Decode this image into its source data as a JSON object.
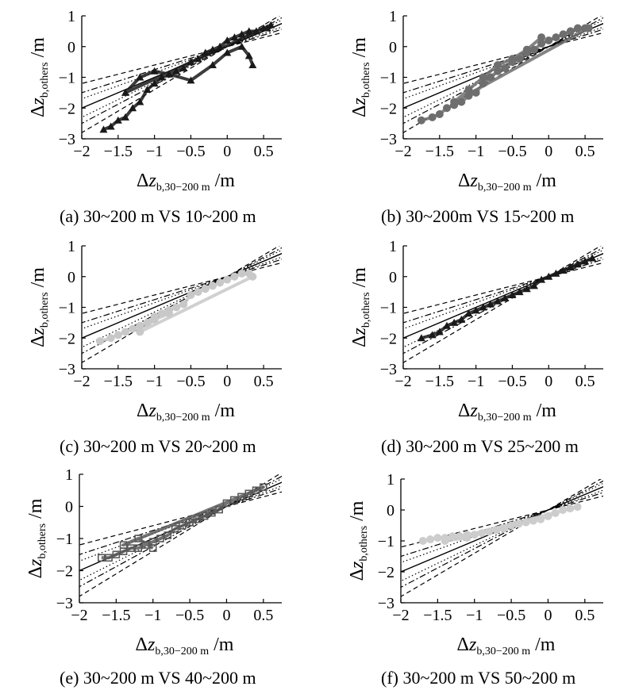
{
  "chart_data": [
    {
      "type": "scatter",
      "caption": "(a) 30~200 m VS 10~200 m",
      "xlabel": "Δz_b,30−200 m /m",
      "ylabel": "Δz_b,others /m",
      "xlim": [
        -2.0,
        0.75
      ],
      "ylim": [
        -3,
        1
      ],
      "xticks": [
        "−2",
        "−1.5",
        "−1",
        "−0.5",
        "0",
        "0.5"
      ],
      "yticks": [
        "1",
        "0",
        "−1",
        "−2",
        "−3"
      ],
      "marker": "triangle",
      "marker_color": "#1a1a1a",
      "guide_lines": {
        "center_slope": 1.0,
        "dotted_slopes": [
          0.85,
          1.15
        ],
        "dashdot_slopes": [
          0.75,
          1.25
        ],
        "dashed_slopes": [
          0.6,
          1.4
        ],
        "pivot": [
          0,
          0
        ]
      },
      "series": [
        {
          "x": [
            -1.7,
            -1.6,
            -1.5,
            -1.4,
            -1.3,
            -1.2,
            -1.1,
            -1.0,
            -0.9,
            -0.8,
            -0.7,
            -0.6,
            -0.5,
            -0.4,
            -0.3,
            -0.2,
            -0.1,
            0.0,
            0.1,
            0.2,
            0.3,
            0.4,
            0.5,
            0.55,
            0.6,
            -1.4,
            -1.2,
            -1.0,
            -0.8,
            -0.5,
            -0.2,
            0.0,
            0.2,
            0.3,
            0.35
          ],
          "y": [
            -2.7,
            -2.6,
            -2.4,
            -2.3,
            -2.0,
            -1.8,
            -1.4,
            -1.2,
            -1.0,
            -0.9,
            -0.8,
            -0.7,
            -0.5,
            -0.4,
            -0.2,
            -0.1,
            0.0,
            0.2,
            0.3,
            0.4,
            0.5,
            0.5,
            0.6,
            0.6,
            0.7,
            -1.5,
            -1.0,
            -0.8,
            -0.9,
            -1.1,
            -0.6,
            -0.2,
            0.0,
            -0.3,
            -0.6
          ]
        }
      ]
    },
    {
      "type": "scatter",
      "caption": "(b) 30~200m VS 15~200 m",
      "xlabel": "Δz_b,30−200 m /m",
      "ylabel": "Δz_b,others /m",
      "xlim": [
        -2.0,
        0.75
      ],
      "ylim": [
        -3,
        1
      ],
      "xticks": [
        "−2",
        "−1.5",
        "−1",
        "−0.5",
        "0",
        "0.5"
      ],
      "yticks": [
        "1",
        "0",
        "−1",
        "−2",
        "−3"
      ],
      "marker": "circle",
      "marker_color": "#6e6e6e",
      "guide_lines": {
        "center_slope": 1.0,
        "dotted_slopes": [
          0.85,
          1.15
        ],
        "dashdot_slopes": [
          0.75,
          1.25
        ],
        "dashed_slopes": [
          0.6,
          1.4
        ],
        "pivot": [
          0,
          0
        ]
      },
      "series": [
        {
          "x": [
            -1.75,
            -1.6,
            -1.5,
            -1.4,
            -1.3,
            -1.2,
            -1.1,
            -1.0,
            -0.9,
            -0.8,
            -0.7,
            -0.6,
            -0.5,
            -0.4,
            -0.3,
            -0.2,
            -0.1,
            0.0,
            0.1,
            0.2,
            0.3,
            0.4,
            0.5,
            0.55,
            -1.3,
            -1.1,
            -0.9,
            -0.7,
            -0.5,
            -0.3,
            -0.1
          ],
          "y": [
            -2.4,
            -2.3,
            -2.2,
            -2.0,
            -1.9,
            -1.8,
            -1.6,
            -1.5,
            -1.2,
            -1.0,
            -0.8,
            -0.7,
            -0.5,
            -0.4,
            -0.2,
            -0.1,
            0.1,
            0.2,
            0.3,
            0.4,
            0.5,
            0.6,
            0.6,
            0.6,
            -1.8,
            -1.4,
            -1.0,
            -0.6,
            -0.4,
            -0.1,
            0.3
          ]
        }
      ]
    },
    {
      "type": "scatter",
      "caption": "(c) 30~200 m VS 20~200 m",
      "xlabel": "Δz_b,30−200 m /m",
      "ylabel": "Δz_b,others /m",
      "xlim": [
        -2.0,
        0.75
      ],
      "ylim": [
        -3,
        1
      ],
      "xticks": [
        "−2",
        "−1.5",
        "−1",
        "−0.5",
        "0",
        "0.5"
      ],
      "yticks": [
        "1",
        "0",
        "−1",
        "−2",
        "−3"
      ],
      "marker": "circle",
      "marker_color": "#c8c8c8",
      "guide_lines": {
        "center_slope": 1.0,
        "dotted_slopes": [
          0.85,
          1.15
        ],
        "dashdot_slopes": [
          0.75,
          1.25
        ],
        "dashed_slopes": [
          0.6,
          1.4
        ],
        "pivot": [
          0,
          0
        ]
      },
      "series": [
        {
          "x": [
            -1.75,
            -1.6,
            -1.5,
            -1.4,
            -1.3,
            -1.2,
            -1.1,
            -1.0,
            -0.9,
            -0.8,
            -0.7,
            -0.6,
            -0.5,
            -0.4,
            -0.3,
            -0.2,
            -0.1,
            0.0,
            0.1,
            0.2,
            0.3,
            0.35,
            -1.2,
            -1.0,
            -0.8
          ],
          "y": [
            -2.1,
            -2.0,
            -1.9,
            -1.8,
            -1.7,
            -1.6,
            -1.5,
            -1.3,
            -1.2,
            -1.1,
            -1.0,
            -0.9,
            -0.6,
            -0.5,
            -0.4,
            -0.3,
            -0.2,
            -0.1,
            0.0,
            0.1,
            0.1,
            0.0,
            -1.8,
            -1.4,
            -1.2
          ]
        }
      ]
    },
    {
      "type": "scatter",
      "caption": "(d) 30~200 m VS 25~200 m",
      "xlabel": "Δz_b,30−200 m /m",
      "ylabel": "Δz_b,others /m",
      "xlim": [
        -2.0,
        0.75
      ],
      "ylim": [
        -3,
        1
      ],
      "xticks": [
        "−2",
        "−1.5",
        "−1",
        "−0.5",
        "0",
        "0.5"
      ],
      "yticks": [
        "1",
        "0",
        "−1",
        "−2",
        "−3"
      ],
      "marker": "triangle",
      "marker_color": "#1a1a1a",
      "guide_lines": {
        "center_slope": 1.0,
        "dotted_slopes": [
          0.85,
          1.15
        ],
        "dashdot_slopes": [
          0.75,
          1.25
        ],
        "dashed_slopes": [
          0.6,
          1.4
        ],
        "pivot": [
          0,
          0
        ]
      },
      "series": [
        {
          "x": [
            -1.75,
            -1.6,
            -1.5,
            -1.4,
            -1.3,
            -1.2,
            -1.1,
            -1.0,
            -0.9,
            -0.8,
            -0.7,
            -0.6,
            -0.5,
            -0.4,
            -0.3,
            -0.2,
            -0.1,
            0.0,
            0.1,
            0.2,
            0.3,
            0.4,
            0.5,
            0.6
          ],
          "y": [
            -2.0,
            -1.9,
            -1.8,
            -1.6,
            -1.5,
            -1.4,
            -1.2,
            -1.1,
            -1.0,
            -0.9,
            -0.8,
            -0.7,
            -0.6,
            -0.5,
            -0.4,
            -0.3,
            -0.1,
            0.0,
            0.1,
            0.2,
            0.3,
            0.4,
            0.5,
            0.6
          ]
        }
      ]
    },
    {
      "type": "scatter",
      "caption": "(e) 30~200 m VS 40~200 m",
      "xlabel": "Δz_b,30−200 m /m",
      "ylabel": "Δz_b,others /m",
      "xlim": [
        -2.0,
        0.75
      ],
      "ylim": [
        -3,
        1
      ],
      "xticks": [
        "−2",
        "−1.5",
        "−1",
        "−0.5",
        "0",
        "0.5"
      ],
      "yticks": [
        "1",
        "0",
        "−1",
        "−2",
        "−3"
      ],
      "marker": "square",
      "marker_color": "#5a5a5a",
      "guide_lines": {
        "center_slope": 1.0,
        "dotted_slopes": [
          0.85,
          1.15
        ],
        "dashdot_slopes": [
          0.75,
          1.25
        ],
        "dashed_slopes": [
          0.6,
          1.4
        ],
        "pivot": [
          0,
          0
        ]
      },
      "series": [
        {
          "x": [
            -1.7,
            -1.6,
            -1.5,
            -1.4,
            -1.3,
            -1.2,
            -1.1,
            -1.0,
            -0.9,
            -0.8,
            -0.7,
            -0.6,
            -0.5,
            -0.4,
            -0.3,
            -0.2,
            -0.1,
            0.0,
            0.1,
            0.2,
            0.3,
            0.4,
            0.5,
            -1.4,
            -1.2,
            -1.0
          ],
          "y": [
            -1.6,
            -1.6,
            -1.5,
            -1.4,
            -1.3,
            -1.3,
            -1.2,
            -1.1,
            -1.0,
            -0.9,
            -0.7,
            -0.6,
            -0.5,
            -0.4,
            -0.3,
            -0.2,
            -0.1,
            0.1,
            0.2,
            0.3,
            0.4,
            0.5,
            0.6,
            -1.2,
            -1.0,
            -1.3
          ]
        }
      ]
    },
    {
      "type": "scatter",
      "caption": "(f) 30~200 m VS 50~200 m",
      "xlabel": "Δz_b,30−200 m /m",
      "ylabel": "Δz_b,others /m",
      "xlim": [
        -2.0,
        0.75
      ],
      "ylim": [
        -3,
        1
      ],
      "xticks": [
        "−2",
        "−1.5",
        "−1",
        "−0.5",
        "0",
        "0.5"
      ],
      "yticks": [
        "1",
        "0",
        "−1",
        "−2",
        "−3"
      ],
      "marker": "circle",
      "marker_color": "#cccccc",
      "guide_lines": {
        "center_slope": 1.0,
        "dotted_slopes": [
          0.85,
          1.15
        ],
        "dashdot_slopes": [
          0.75,
          1.25
        ],
        "dashed_slopes": [
          0.6,
          1.4
        ],
        "pivot": [
          0,
          0
        ]
      },
      "series": [
        {
          "x": [
            -1.7,
            -1.6,
            -1.5,
            -1.4,
            -1.3,
            -1.2,
            -1.1,
            -1.0,
            -0.9,
            -0.8,
            -0.7,
            -0.6,
            -0.5,
            -0.4,
            -0.3,
            -0.2,
            -0.1,
            0.0,
            0.1,
            0.2,
            0.3,
            0.4,
            -1.4,
            -1.1
          ],
          "y": [
            -1.0,
            -0.95,
            -0.9,
            -0.9,
            -0.85,
            -0.85,
            -0.8,
            -0.8,
            -0.75,
            -0.7,
            -0.65,
            -0.6,
            -0.5,
            -0.45,
            -0.4,
            -0.35,
            -0.3,
            -0.2,
            -0.1,
            0.0,
            0.05,
            0.1,
            -1.0,
            -0.9
          ]
        }
      ]
    }
  ]
}
